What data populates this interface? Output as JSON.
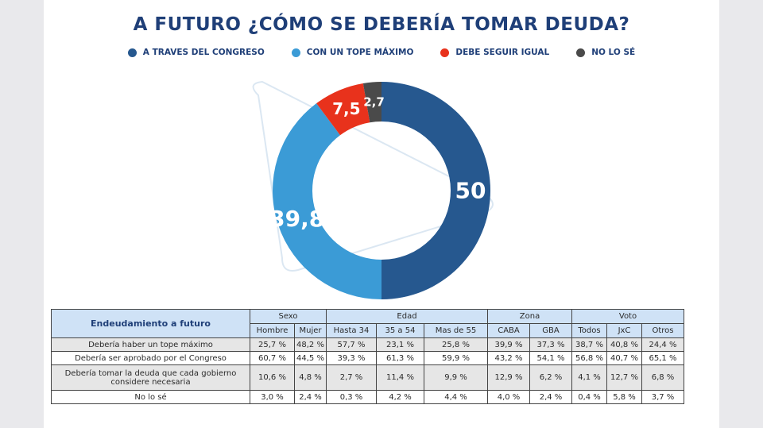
{
  "chart_data": {
    "type": "pie",
    "title": "A FUTURO ¿CÓMO SE DEBERÍA TOMAR DEUDA?",
    "categories": [
      "A TRAVES DEL CONGRESO",
      "CON UN TOPE MÁXIMO",
      "DEBE SEGUIR IGUAL",
      "NO LO SÉ"
    ],
    "values": [
      50,
      39.8,
      7.5,
      2.7
    ],
    "labels": [
      "50",
      "39,8",
      "7,5",
      "2,7"
    ],
    "colors": [
      "#26588f",
      "#3b9bd6",
      "#e8321c",
      "#4a4a4a"
    ],
    "legend_position": "top"
  },
  "table": {
    "corner": "Endeudamiento a futuro",
    "groups": [
      {
        "label": "Sexo",
        "cols": [
          "Hombre",
          "Mujer"
        ]
      },
      {
        "label": "Edad",
        "cols": [
          "Hasta 34",
          "35 a 54",
          "Mas de 55"
        ]
      },
      {
        "label": "Zona",
        "cols": [
          "CABA",
          "GBA"
        ]
      },
      {
        "label": "Voto",
        "cols": [
          "Todos",
          "JxC",
          "Otros"
        ]
      }
    ],
    "rows": [
      {
        "label": "Debería haber un tope máximo",
        "cells": [
          "25,7 %",
          "48,2 %",
          "57,7 %",
          "23,1 %",
          "25,8 %",
          "39,9 %",
          "37,3 %",
          "38,7 %",
          "40,8 %",
          "24,4 %"
        ]
      },
      {
        "label": "Debería ser aprobado por el Congreso",
        "cells": [
          "60,7 %",
          "44,5 %",
          "39,3 %",
          "61,3 %",
          "59,9 %",
          "43,2 %",
          "54,1 %",
          "56,8 %",
          "40,7 %",
          "65,1 %"
        ]
      },
      {
        "label": "Debería tomar la deuda que cada gobierno considere necesaria",
        "cells": [
          "10,6 %",
          "4,8 %",
          "2,7 %",
          "11,4 %",
          "9,9 %",
          "12,9 %",
          "6,2 %",
          "4,1 %",
          "12,7 %",
          "6,8 %"
        ]
      },
      {
        "label": "No lo sé",
        "cells": [
          "3,0 %",
          "2,4 %",
          "0,3 %",
          "4,2 %",
          "4,4 %",
          "4,0 %",
          "2,4 %",
          "0,4 %",
          "5,8 %",
          "3,7 %"
        ]
      }
    ]
  }
}
